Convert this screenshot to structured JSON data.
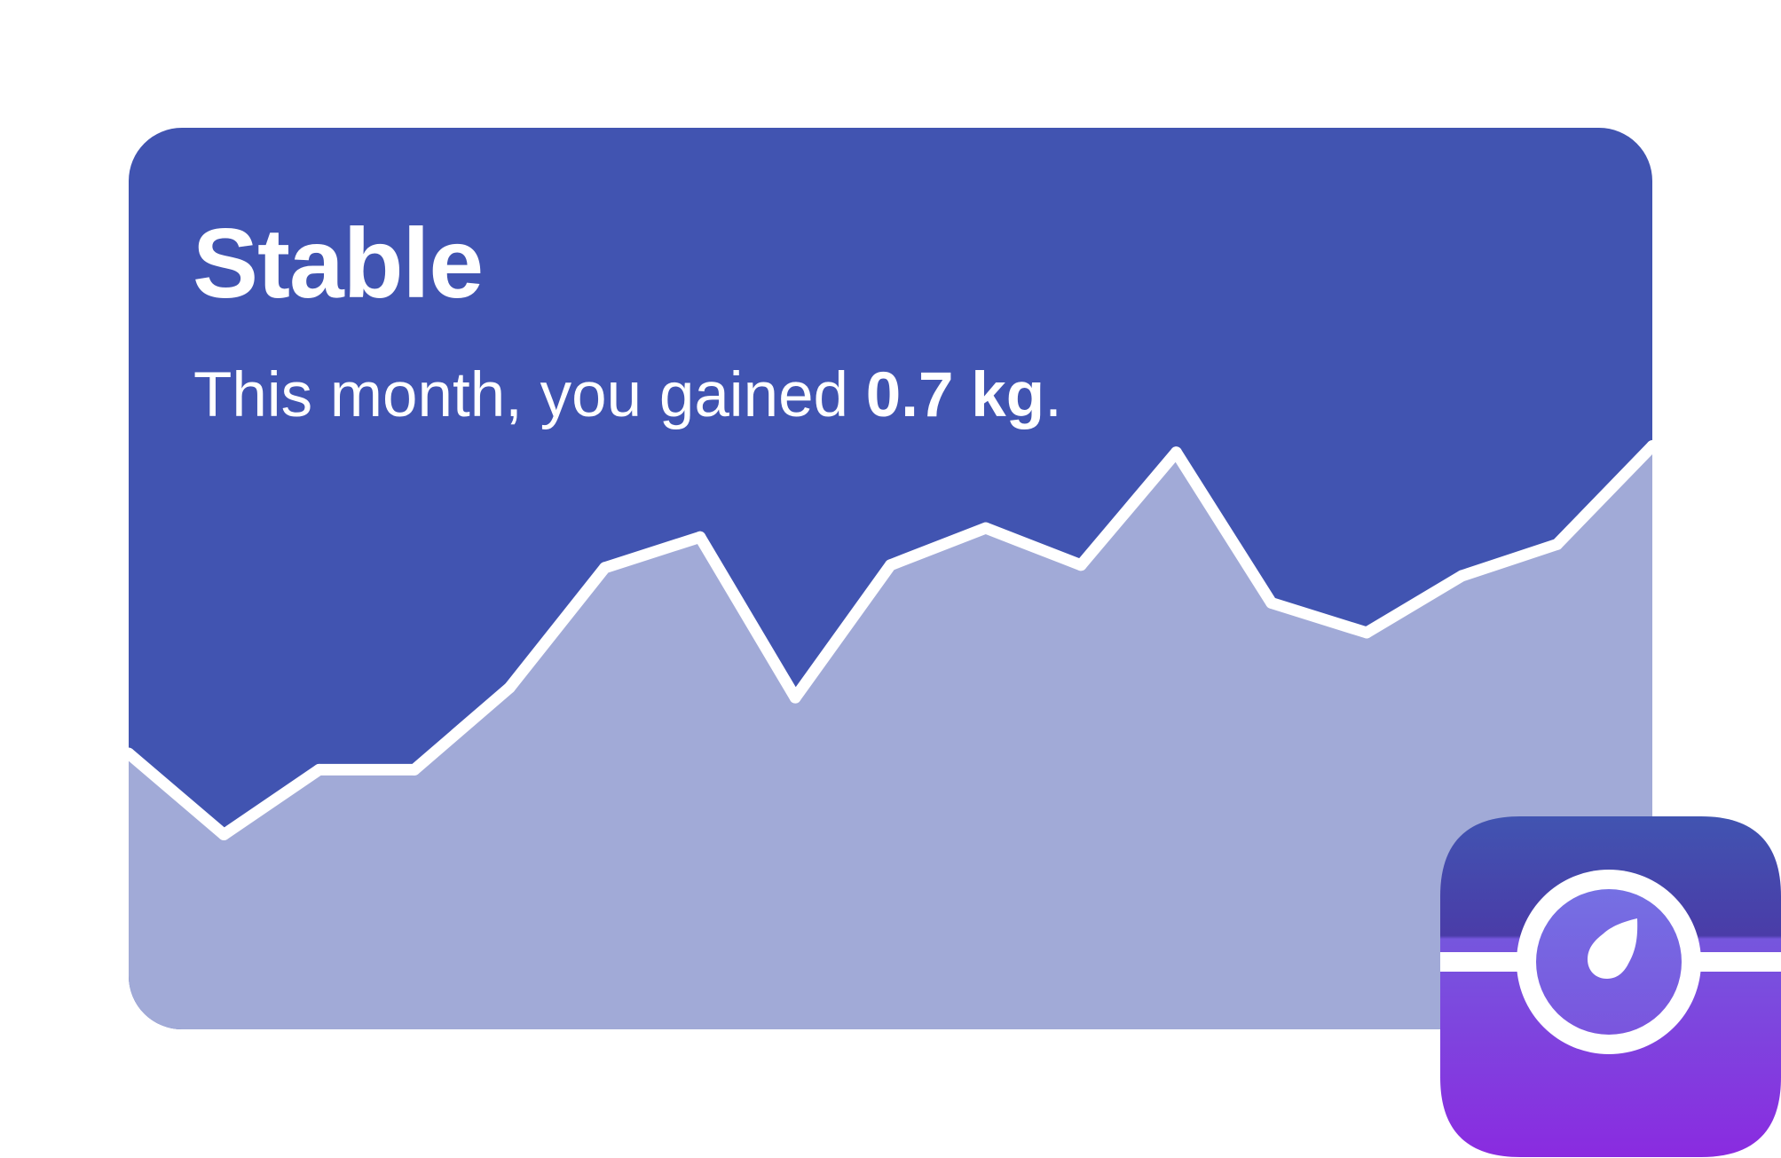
{
  "card": {
    "title": "Stable",
    "subtitle_prefix": "This month, you gained ",
    "subtitle_value": "0.7 kg",
    "subtitle_suffix": "."
  },
  "colors": {
    "card_background": "#4154B1",
    "area_fill": "#A1AAD7",
    "line": "#ffffff",
    "icon_gradient_top": "#4154B1",
    "icon_gradient_bottom": "#8A2BE0",
    "icon_center": "#7769E0"
  },
  "chart_data": {
    "type": "area",
    "x": [
      0,
      1,
      2,
      3,
      4,
      5,
      6,
      7,
      8,
      9,
      10,
      11,
      12,
      13,
      14,
      15,
      16
    ],
    "series": [
      {
        "values": [
          30.6,
          21.6,
          28.8,
          28.8,
          37.9,
          51.2,
          54.6,
          36.8,
          51.5,
          55.6,
          51.5,
          64.0,
          47.3,
          44.0,
          50.3,
          53.8,
          64.7
        ]
      }
    ],
    "ylim": [
      0,
      100
    ],
    "grid": false
  },
  "app_icon": {
    "name": "scale-app-icon"
  }
}
